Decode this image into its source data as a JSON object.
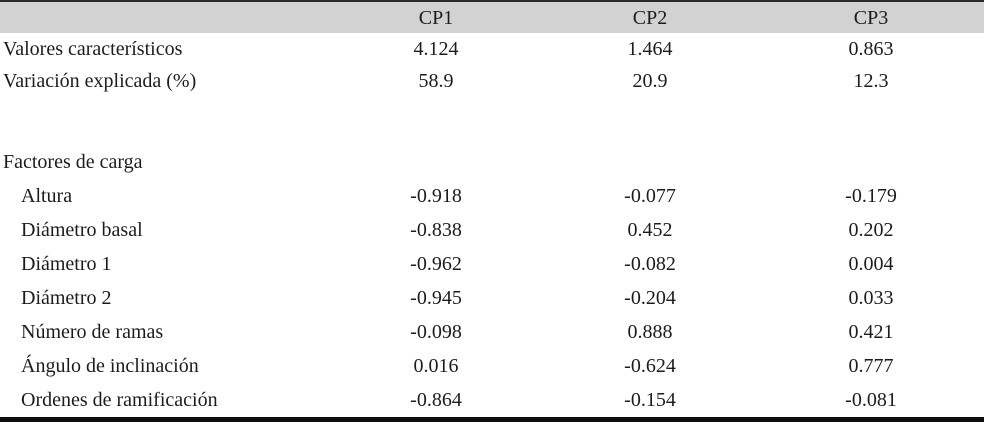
{
  "table": {
    "header_bg": "#d2d2d3",
    "columns": [
      "",
      "CP1",
      "CP2",
      "CP3"
    ],
    "rows": [
      {
        "label": "Valores característicos",
        "indent": false,
        "values": [
          "4.124",
          "1.464",
          "0.863"
        ]
      },
      {
        "label": "Variación explicada (%)",
        "indent": false,
        "values": [
          "58.9",
          "20.9",
          "12.3"
        ]
      },
      {
        "label": "",
        "indent": false,
        "values": [
          "",
          "",
          ""
        ]
      },
      {
        "label": "Factores de carga",
        "indent": false,
        "values": [
          "",
          "",
          ""
        ]
      },
      {
        "label": "Altura",
        "indent": true,
        "values": [
          "-0.918",
          "-0.077",
          "-0.179"
        ]
      },
      {
        "label": "Diámetro basal",
        "indent": true,
        "values": [
          "-0.838",
          "0.452",
          "0.202"
        ]
      },
      {
        "label": "Diámetro 1",
        "indent": true,
        "values": [
          "-0.962",
          "-0.082",
          "0.004"
        ]
      },
      {
        "label": "Diámetro 2",
        "indent": true,
        "values": [
          "-0.945",
          "-0.204",
          "0.033"
        ]
      },
      {
        "label": "Número de ramas",
        "indent": true,
        "values": [
          "-0.098",
          "0.888",
          "0.421"
        ]
      },
      {
        "label": "Ángulo de inclinación",
        "indent": true,
        "values": [
          "0.016",
          "-0.624",
          "0.777"
        ]
      },
      {
        "label": "Ordenes de ramificación",
        "indent": true,
        "values": [
          "-0.864",
          "-0.154",
          "-0.081"
        ]
      }
    ]
  }
}
